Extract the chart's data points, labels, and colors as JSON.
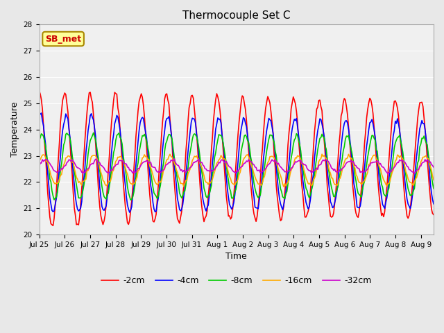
{
  "title": "Thermocouple Set C",
  "xlabel": "Time",
  "ylabel": "Temperature",
  "ylim": [
    20.0,
    28.0
  ],
  "yticks": [
    20.0,
    21.0,
    22.0,
    23.0,
    24.0,
    25.0,
    26.0,
    27.0,
    28.0
  ],
  "xtick_labels": [
    "Jul 25",
    "Jul 26",
    "Jul 27",
    "Jul 28",
    "Jul 29",
    "Jul 30",
    "Jul 31",
    "Aug 1",
    "Aug 2",
    "Aug 3",
    "Aug 4",
    "Aug 5",
    "Aug 6",
    "Aug 7",
    "Aug 8",
    "Aug 9"
  ],
  "annotation": "SB_met",
  "annotation_color": "#cc0000",
  "annotation_bg": "#ffff99",
  "annotation_border": "#aa8800",
  "lines": {
    "-2cm": {
      "color": "#ff0000",
      "lw": 1.2
    },
    "-4cm": {
      "color": "#0000ff",
      "lw": 1.2
    },
    "-8cm": {
      "color": "#00cc00",
      "lw": 1.2
    },
    "-16cm": {
      "color": "#ffaa00",
      "lw": 1.2
    },
    "-32cm": {
      "color": "#cc00cc",
      "lw": 1.2
    }
  },
  "bg_color": "#e8e8e8",
  "plot_bg": "#f0f0f0",
  "n_points": 372,
  "n_days": 15.5,
  "base_temp": 22.6,
  "amp_neg2": 2.55,
  "amp_neg4": 1.85,
  "amp_neg8": 1.25,
  "amp_neg16": 0.55,
  "amp_neg32": 0.22,
  "phase_neg2": 0.0,
  "phase_neg4": 0.35,
  "phase_neg8": 0.7,
  "phase_neg16": 1.0,
  "phase_neg32": 1.4,
  "noise_neg2": 0.06,
  "noise_neg4": 0.05,
  "noise_neg8": 0.05,
  "noise_neg16": 0.04,
  "noise_neg32": 0.03,
  "title_fontsize": 11,
  "tick_fontsize": 7.5,
  "label_fontsize": 9,
  "legend_fontsize": 9
}
